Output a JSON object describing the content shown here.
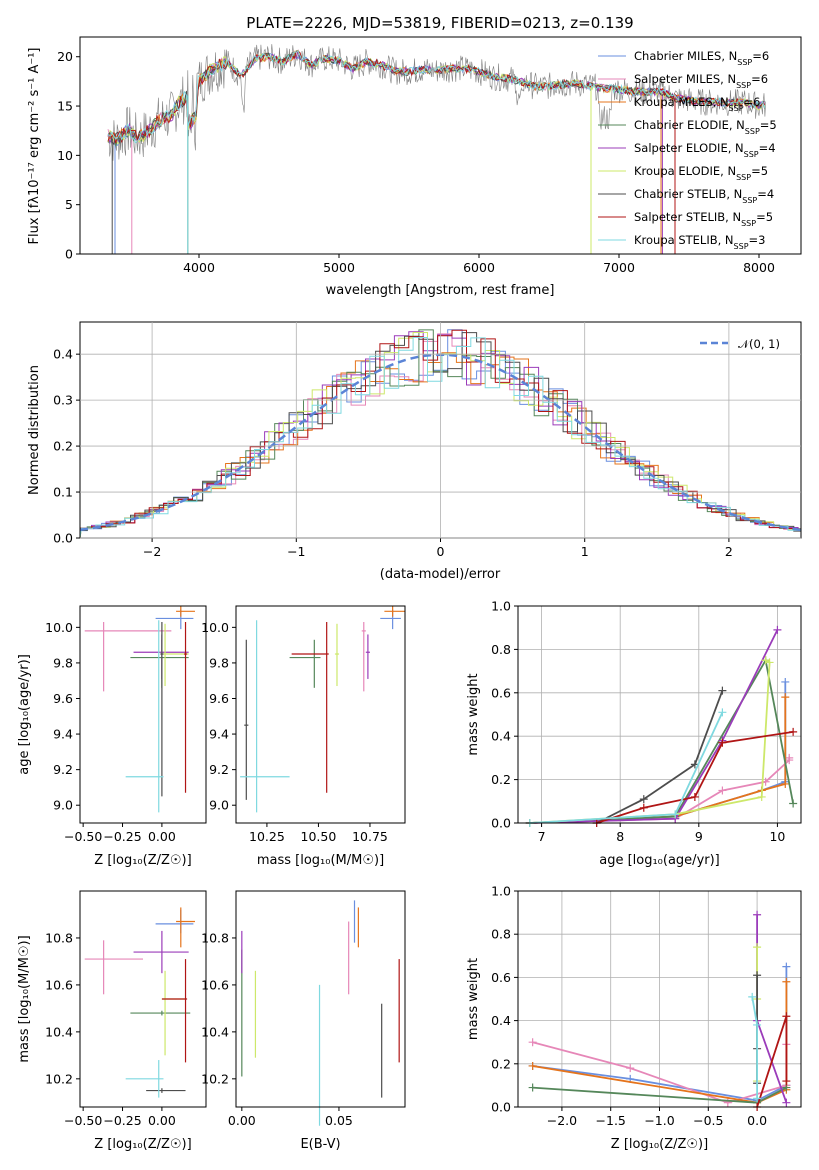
{
  "chart_data": [
    {
      "type": "line",
      "title": "PLATE=2226, MJD=53819, FIBERID=0213, z=0.139",
      "xlabel": "wavelength [Angstrom, rest frame]",
      "ylabel": "Flux [fλ10⁻¹⁷ erg cm⁻² s⁻¹ A⁻¹]",
      "xlim": [
        3150,
        8300
      ],
      "ylim": [
        0,
        22
      ],
      "x_ticks": [
        "4000",
        "5000",
        "6000",
        "7000",
        "8000"
      ],
      "y_ticks": [
        "0",
        "5",
        "10",
        "15",
        "20"
      ],
      "legend_position": "top-right",
      "data_trace": {
        "name": "",
        "color": "#7f7f7f"
      },
      "series": [
        {
          "name": "Chabrier MILES, N",
          "sub": "SSP",
          "n": "=6",
          "color": "#6a8fdf"
        },
        {
          "name": "Salpeter MILES, N",
          "sub": "SSP",
          "n": "=6",
          "color": "#e687b8"
        },
        {
          "name": "Kroupa MILES, N",
          "sub": "SSP",
          "n": "=6",
          "color": "#e5741c"
        },
        {
          "name": "Chabrier ELODIE, N",
          "sub": "SSP",
          "n": "=5",
          "color": "#55875a"
        },
        {
          "name": "Salpeter ELODIE, N",
          "sub": "SSP",
          "n": "=4",
          "color": "#9b3cba"
        },
        {
          "name": "Kroupa ELODIE, N",
          "sub": "SSP",
          "n": "=5",
          "color": "#cde86a"
        },
        {
          "name": "Chabrier STELIB, N",
          "sub": "SSP",
          "n": "=4",
          "color": "#4d4d4d"
        },
        {
          "name": "Salpeter STELIB, N",
          "sub": "SSP",
          "n": "=5",
          "color": "#b01515"
        },
        {
          "name": "Kroupa STELIB, N",
          "sub": "SSP",
          "n": "=3",
          "color": "#7fd9e0"
        }
      ],
      "spectrum_x": [
        3350,
        3400,
        3450,
        3500,
        3550,
        3600,
        3650,
        3700,
        3750,
        3800,
        3850,
        3900,
        3950,
        4000,
        4100,
        4200,
        4300,
        4400,
        4500,
        4600,
        4700,
        4800,
        4900,
        5000,
        5100,
        5200,
        5300,
        5400,
        5500,
        5600,
        5700,
        5800,
        5900,
        6000,
        6100,
        6200,
        6300,
        6400,
        6500,
        6600,
        6700,
        6800,
        6900,
        7000,
        7100,
        7200,
        7300,
        7400,
        7500,
        7600,
        7700,
        7800,
        7900,
        8000,
        8050
      ],
      "spectrum_y": [
        12.0,
        11.5,
        12.0,
        12.6,
        11.8,
        12.0,
        12.6,
        13.4,
        13.8,
        14.0,
        15.2,
        15.8,
        16.5,
        17.5,
        18.8,
        19.5,
        18.0,
        19.8,
        20.0,
        19.5,
        20.3,
        19.2,
        19.8,
        19.6,
        18.8,
        19.5,
        19.2,
        18.5,
        18.5,
        18.7,
        18.6,
        18.8,
        18.8,
        18.5,
        18.0,
        17.8,
        17.5,
        17.0,
        17.0,
        17.2,
        17.3,
        17.0,
        16.8,
        16.7,
        16.5,
        16.4,
        16.5,
        15.8,
        15.6,
        15.4,
        15.4,
        15.3,
        15.4,
        15.0,
        15.1
      ]
    },
    {
      "type": "bar",
      "xlabel": "(data-model)/error",
      "ylabel": "Normed distribution",
      "xlim": [
        -2.5,
        2.5
      ],
      "ylim": [
        0,
        0.47
      ],
      "x_ticks": [
        "−2",
        "−1",
        "0",
        "1",
        "2"
      ],
      "y_ticks": [
        "0.0",
        "0.1",
        "0.2",
        "0.3",
        "0.4"
      ],
      "grid": true,
      "legend_position": "top-right",
      "reference": {
        "name": "𝒩(0, 1)",
        "color": "#5b84d6"
      },
      "bin_width": 0.1
    },
    {
      "type": "scatter",
      "xlabel": "Z [log₁₀(Z/Z☉)]",
      "ylabel": "age  [log₁₀(age/yr)]",
      "xlim": [
        -0.52,
        0.28
      ],
      "ylim": [
        8.9,
        10.12
      ],
      "x_ticks": [
        "−0.50",
        "−0.25",
        "0.00"
      ],
      "y_ticks": [
        "9.0",
        "9.2",
        "9.4",
        "9.6",
        "9.8",
        "10.0"
      ],
      "points": [
        {
          "x": 0.12,
          "y": 10.05,
          "xerr": [
            0.16,
            0.08
          ],
          "yerr": [
            0.06,
            0.05
          ],
          "color": "#6a8fdf"
        },
        {
          "x": -0.37,
          "y": 9.98,
          "xerr": [
            0.12,
            0.43
          ],
          "yerr": [
            0.34,
            0.05
          ],
          "color": "#e687b8"
        },
        {
          "x": 0.12,
          "y": 10.09,
          "xerr": [
            0.03,
            0.09
          ],
          "yerr": [
            0.03,
            0.03
          ],
          "color": "#e5741c"
        },
        {
          "x": 0.0,
          "y": 9.83,
          "xerr": [
            0.2,
            0.17
          ],
          "yerr": [
            0.17,
            0.1
          ],
          "color": "#55875a"
        },
        {
          "x": 0.0,
          "y": 9.86,
          "xerr": [
            0.18,
            0.17
          ],
          "yerr": [
            0.15,
            0.1
          ],
          "color": "#9b3cba"
        },
        {
          "x": 0.02,
          "y": 9.85,
          "xerr": [
            0.02,
            0.15
          ],
          "yerr": [
            0.18,
            0.17
          ],
          "color": "#cde86a"
        },
        {
          "x": 0.0,
          "y": 9.85,
          "xerr": [
            0.01,
            0.01
          ],
          "yerr": [
            0.8,
            0.18
          ],
          "color": "#4d4d4d"
        },
        {
          "x": 0.15,
          "y": 9.85,
          "xerr": [
            0.01,
            0.01
          ],
          "yerr": [
            0.78,
            0.18
          ],
          "color": "#b01515"
        },
        {
          "x": -0.02,
          "y": 9.16,
          "xerr": [
            0.21,
            0.03
          ],
          "yerr": [
            0.2,
            0.88
          ],
          "color": "#7fd9e0"
        }
      ]
    },
    {
      "type": "scatter",
      "xlabel": "mass [log₁₀(M/M☉)]",
      "ylabel": "",
      "xlim": [
        10.1,
        10.92
      ],
      "ylim": [
        8.9,
        10.12
      ],
      "x_ticks": [
        "10.25",
        "10.50",
        "10.75"
      ],
      "y_ticks": [
        "9.0",
        "9.2",
        "9.4",
        "9.6",
        "9.8",
        "10.0"
      ],
      "points": [
        {
          "x": 10.86,
          "y": 10.05,
          "xerr": [
            0.06,
            0.04
          ],
          "yerr": [
            0.06,
            0.05
          ],
          "color": "#6a8fdf"
        },
        {
          "x": 10.72,
          "y": 9.98,
          "xerr": [
            0.01,
            0.01
          ],
          "yerr": [
            0.34,
            0.05
          ],
          "color": "#e687b8"
        },
        {
          "x": 10.86,
          "y": 10.09,
          "xerr": [
            0.04,
            0.06
          ],
          "yerr": [
            0.03,
            0.03
          ],
          "color": "#e5741c"
        },
        {
          "x": 10.48,
          "y": 9.83,
          "xerr": [
            0.12,
            0.03
          ],
          "yerr": [
            0.17,
            0.1
          ],
          "color": "#55875a"
        },
        {
          "x": 10.74,
          "y": 9.86,
          "xerr": [
            0.01,
            0.01
          ],
          "yerr": [
            0.15,
            0.1
          ],
          "color": "#9b3cba"
        },
        {
          "x": 10.59,
          "y": 9.85,
          "xerr": [
            0.01,
            0.01
          ],
          "yerr": [
            0.18,
            0.17
          ],
          "color": "#cde86a"
        },
        {
          "x": 10.15,
          "y": 9.45,
          "xerr": [
            0.01,
            0.01
          ],
          "yerr": [
            0.42,
            0.48
          ],
          "color": "#4d4d4d"
        },
        {
          "x": 10.54,
          "y": 9.85,
          "xerr": [
            0.17,
            0.01
          ],
          "yerr": [
            0.78,
            0.18
          ],
          "color": "#b01515"
        },
        {
          "x": 10.2,
          "y": 9.16,
          "xerr": [
            0.08,
            0.16
          ],
          "yerr": [
            0.2,
            0.88
          ],
          "color": "#7fd9e0"
        }
      ]
    },
    {
      "type": "line",
      "xlabel": "age  [log₁₀(age/yr)]",
      "ylabel": "mass weight",
      "xlim": [
        6.7,
        10.3
      ],
      "ylim": [
        0,
        1.0
      ],
      "x_ticks": [
        "7",
        "8",
        "9",
        "10"
      ],
      "y_ticks": [
        "0.0",
        "0.2",
        "0.4",
        "0.6",
        "0.8",
        "1.0"
      ],
      "grid": true,
      "series": [
        {
          "color": "#6a8fdf",
          "x": [
            6.85,
            8.7,
            9.8,
            10.1,
            10.1
          ],
          "y": [
            0.0,
            0.03,
            0.15,
            0.19,
            0.65
          ]
        },
        {
          "color": "#e687b8",
          "x": [
            6.85,
            8.7,
            9.3,
            9.85,
            10.15,
            10.15
          ],
          "y": [
            0.0,
            0.02,
            0.15,
            0.19,
            0.29,
            0.3
          ]
        },
        {
          "color": "#e5741c",
          "x": [
            6.85,
            8.7,
            9.8,
            10.1,
            10.1
          ],
          "y": [
            0.0,
            0.03,
            0.15,
            0.18,
            0.58
          ]
        },
        {
          "color": "#55875a",
          "x": [
            6.85,
            8.7,
            9.85,
            10.2
          ],
          "y": [
            0.0,
            0.03,
            0.75,
            0.09
          ]
        },
        {
          "color": "#9b3cba",
          "x": [
            6.85,
            8.7,
            9.3,
            10.0
          ],
          "y": [
            0.0,
            0.02,
            0.38,
            0.89
          ]
        },
        {
          "color": "#cde86a",
          "x": [
            6.85,
            8.7,
            9.8,
            9.9,
            9.85
          ],
          "y": [
            0.0,
            0.04,
            0.12,
            0.74,
            0.75
          ]
        },
        {
          "color": "#4d4d4d",
          "x": [
            7.7,
            8.3,
            8.95,
            9.3
          ],
          "y": [
            0.0,
            0.11,
            0.27,
            0.61
          ]
        },
        {
          "color": "#b01515",
          "x": [
            7.7,
            8.3,
            8.95,
            9.3,
            10.2
          ],
          "y": [
            0.0,
            0.07,
            0.12,
            0.37,
            0.42
          ]
        },
        {
          "color": "#7fd9e0",
          "x": [
            6.85,
            8.7,
            9.3
          ],
          "y": [
            0.0,
            0.04,
            0.51
          ]
        }
      ]
    },
    {
      "type": "scatter",
      "xlabel": "Z [log₁₀(Z/Z☉)]",
      "ylabel": "mass [log₁₀(M/M☉)]",
      "xlim": [
        -0.52,
        0.28
      ],
      "ylim": [
        10.08,
        11.0
      ],
      "x_ticks": [
        "−0.50",
        "−0.25",
        "0.00"
      ],
      "y_ticks": [
        "10.2",
        "10.4",
        "10.6",
        "10.8"
      ],
      "points": [
        {
          "x": 0.12,
          "y": 10.86,
          "xerr": [
            0.16,
            0.08
          ],
          "yerr": [
            0.04,
            0.06
          ],
          "color": "#6a8fdf"
        },
        {
          "x": -0.37,
          "y": 10.71,
          "xerr": [
            0.12,
            0.25
          ],
          "yerr": [
            0.15,
            0.08
          ],
          "color": "#e687b8"
        },
        {
          "x": 0.12,
          "y": 10.87,
          "xerr": [
            0.03,
            0.09
          ],
          "yerr": [
            0.11,
            0.06
          ],
          "color": "#e5741c"
        },
        {
          "x": 0.0,
          "y": 10.48,
          "xerr": [
            0.2,
            0.18
          ],
          "yerr": [
            0.01,
            0.01
          ],
          "color": "#55875a"
        },
        {
          "x": 0.0,
          "y": 10.74,
          "xerr": [
            0.18,
            0.17
          ],
          "yerr": [
            0.09,
            0.09
          ],
          "color": "#9b3cba"
        },
        {
          "x": 0.02,
          "y": 10.54,
          "xerr": [
            0.02,
            0.13
          ],
          "yerr": [
            0.24,
            0.12
          ],
          "color": "#cde86a"
        },
        {
          "x": 0.0,
          "y": 10.15,
          "xerr": [
            0.1,
            0.15
          ],
          "yerr": [
            0.01,
            0.01
          ],
          "color": "#4d4d4d"
        },
        {
          "x": 0.15,
          "y": 10.54,
          "xerr": [
            0.15,
            0.01
          ],
          "yerr": [
            0.27,
            0.17
          ],
          "color": "#b01515"
        },
        {
          "x": -0.02,
          "y": 10.2,
          "xerr": [
            0.21,
            0.03
          ],
          "yerr": [
            0.08,
            0.08
          ],
          "color": "#7fd9e0"
        }
      ]
    },
    {
      "type": "scatter",
      "xlabel": "E(B-V)",
      "ylabel": "",
      "xlim": [
        -0.003,
        0.084
      ],
      "ylim": [
        10.08,
        11.0
      ],
      "x_ticks": [
        "0.00",
        "0.05"
      ],
      "y_ticks": [
        "10.2",
        "10.4",
        "10.6",
        "10.8"
      ],
      "points": [
        {
          "x": 0.058,
          "y": 10.86,
          "xerr": [
            0,
            0
          ],
          "yerr": [
            0.08,
            0.1
          ],
          "color": "#6a8fdf"
        },
        {
          "x": 0.055,
          "y": 10.71,
          "xerr": [
            0,
            0
          ],
          "yerr": [
            0.15,
            0.16
          ],
          "color": "#e687b8"
        },
        {
          "x": 0.06,
          "y": 10.87,
          "xerr": [
            0,
            0
          ],
          "yerr": [
            0.11,
            0.06
          ],
          "color": "#e5741c"
        },
        {
          "x": 0.0,
          "y": 10.48,
          "xerr": [
            0,
            0
          ],
          "yerr": [
            0.27,
            0.27
          ],
          "color": "#55875a"
        },
        {
          "x": 0.0,
          "y": 10.74,
          "xerr": [
            0,
            0
          ],
          "yerr": [
            0.09,
            0.09
          ],
          "color": "#9b3cba"
        },
        {
          "x": 0.007,
          "y": 10.48,
          "xerr": [
            0,
            0
          ],
          "yerr": [
            0.19,
            0.18
          ],
          "color": "#cde86a"
        },
        {
          "x": 0.072,
          "y": 10.32,
          "xerr": [
            0,
            0
          ],
          "yerr": [
            0.2,
            0.2
          ],
          "color": "#4d4d4d"
        },
        {
          "x": 0.081,
          "y": 10.49,
          "xerr": [
            0,
            0
          ],
          "yerr": [
            0.22,
            0.22
          ],
          "color": "#b01515"
        },
        {
          "x": 0.04,
          "y": 10.3,
          "xerr": [
            0,
            0
          ],
          "yerr": [
            0.3,
            0.3
          ],
          "color": "#7fd9e0"
        }
      ]
    },
    {
      "type": "line",
      "xlabel": "Z [log₁₀(Z/Z☉)]",
      "ylabel": "mass weight",
      "xlim": [
        -2.45,
        0.45
      ],
      "ylim": [
        0,
        1.0
      ],
      "x_ticks": [
        "−2.0",
        "−1.5",
        "−1.0",
        "−0.5",
        "0.0"
      ],
      "y_ticks": [
        "0.0",
        "0.2",
        "0.4",
        "0.6",
        "0.8",
        "1.0"
      ],
      "grid": true,
      "series": [
        {
          "color": "#6a8fdf",
          "x": [
            -2.3,
            -1.3,
            0.0,
            0.3,
            0.3
          ],
          "y": [
            0.19,
            0.13,
            0.03,
            0.1,
            0.65
          ]
        },
        {
          "color": "#e687b8",
          "x": [
            -2.3,
            -1.3,
            -0.3,
            0.3,
            0.3
          ],
          "y": [
            0.3,
            0.18,
            0.02,
            0.1,
            0.29
          ]
        },
        {
          "color": "#e5741c",
          "x": [
            -2.3,
            0.0,
            0.3,
            0.3
          ],
          "y": [
            0.19,
            0.02,
            0.08,
            0.58
          ]
        },
        {
          "color": "#55875a",
          "x": [
            -2.3,
            0.0,
            0.3
          ],
          "y": [
            0.09,
            0.02,
            0.09
          ]
        },
        {
          "color": "#9b3cba",
          "x": [
            0.0,
            0.0,
            0.3
          ],
          "y": [
            0.89,
            0.4,
            0.02
          ]
        },
        {
          "color": "#cde86a",
          "x": [
            0.0,
            0.0,
            0.0
          ],
          "y": [
            0.74,
            0.5,
            0.12
          ]
        },
        {
          "color": "#4d4d4d",
          "x": [
            0.0,
            0.0,
            0.0
          ],
          "y": [
            0.61,
            0.27,
            0.11
          ]
        },
        {
          "color": "#b01515",
          "x": [
            0.0,
            0.3,
            0.3
          ],
          "y": [
            0.0,
            0.42,
            0.12
          ]
        },
        {
          "color": "#7fd9e0",
          "x": [
            -0.05,
            0.0,
            0.0
          ],
          "y": [
            0.51,
            0.38,
            0.04
          ]
        }
      ]
    }
  ]
}
